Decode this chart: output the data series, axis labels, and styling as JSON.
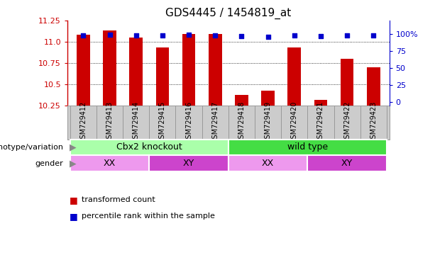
{
  "title": "GDS4445 / 1454819_at",
  "samples": [
    "GSM729412",
    "GSM729413",
    "GSM729414",
    "GSM729415",
    "GSM729416",
    "GSM729417",
    "GSM729418",
    "GSM729419",
    "GSM729420",
    "GSM729421",
    "GSM729422",
    "GSM729423"
  ],
  "bar_values": [
    11.08,
    11.13,
    11.05,
    10.93,
    11.09,
    11.09,
    10.37,
    10.42,
    10.93,
    10.31,
    10.8,
    10.7
  ],
  "percentile_values": [
    98,
    99,
    98,
    98,
    99,
    98,
    97,
    96,
    98,
    97,
    98,
    98
  ],
  "bar_color": "#cc0000",
  "percentile_color": "#0000cc",
  "ymin": 10.25,
  "ymax": 11.25,
  "yticks": [
    10.25,
    10.5,
    10.75,
    11.0,
    11.25
  ],
  "yright_ticks": [
    0,
    25,
    50,
    75,
    100
  ],
  "yright_labels": [
    "0",
    "25",
    "50",
    "75",
    "100%"
  ],
  "genotype_groups": [
    {
      "label": "Cbx2 knockout",
      "start": 0,
      "end": 6,
      "color": "#aaffaa"
    },
    {
      "label": "wild type",
      "start": 6,
      "end": 12,
      "color": "#44dd44"
    }
  ],
  "gender_groups": [
    {
      "label": "XX",
      "start": 0,
      "end": 3,
      "color": "#ee99ee"
    },
    {
      "label": "XY",
      "start": 3,
      "end": 6,
      "color": "#cc44cc"
    },
    {
      "label": "XX",
      "start": 6,
      "end": 9,
      "color": "#ee99ee"
    },
    {
      "label": "XY",
      "start": 9,
      "end": 12,
      "color": "#cc44cc"
    }
  ],
  "genotype_label": "genotype/variation",
  "gender_label": "gender",
  "legend_bar_label": "transformed count",
  "legend_pct_label": "percentile rank within the sample",
  "bar_width": 0.5,
  "background_color": "#ffffff",
  "xtick_bg_color": "#cccccc",
  "xtick_border_color": "#999999"
}
